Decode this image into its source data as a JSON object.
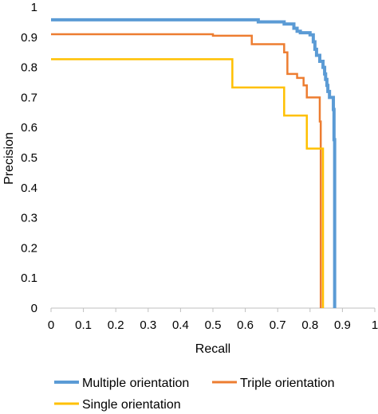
{
  "chart_data": {
    "type": "line",
    "step": true,
    "title": "",
    "xlabel": "Recall",
    "ylabel": "Precision",
    "xlim": [
      0,
      1
    ],
    "ylim": [
      0,
      1
    ],
    "xticks": [
      "0",
      "0.1",
      "0.2",
      "0.3",
      "0.4",
      "0.5",
      "0.6",
      "0.7",
      "0.8",
      "0.9",
      "1"
    ],
    "yticks": [
      "0",
      "0.1",
      "0.2",
      "0.3",
      "0.4",
      "0.5",
      "0.6",
      "0.7",
      "0.8",
      "0.9",
      "1"
    ],
    "xtick_values": [
      0,
      0.1,
      0.2,
      0.3,
      0.4,
      0.5,
      0.6,
      0.7,
      0.8,
      0.9,
      1
    ],
    "ytick_values": [
      0,
      0.1,
      0.2,
      0.3,
      0.4,
      0.5,
      0.6,
      0.7,
      0.8,
      0.9,
      1
    ],
    "grid": false,
    "legend_position": "bottom",
    "series": [
      {
        "name": "Multiple orientation",
        "color": "#5B9BD5",
        "points": [
          [
            0.0,
            0.958
          ],
          [
            0.64,
            0.958
          ],
          [
            0.64,
            0.951
          ],
          [
            0.72,
            0.951
          ],
          [
            0.72,
            0.944
          ],
          [
            0.75,
            0.944
          ],
          [
            0.75,
            0.93
          ],
          [
            0.76,
            0.93
          ],
          [
            0.76,
            0.92
          ],
          [
            0.77,
            0.92
          ],
          [
            0.77,
            0.915
          ],
          [
            0.8,
            0.915
          ],
          [
            0.8,
            0.908
          ],
          [
            0.81,
            0.908
          ],
          [
            0.81,
            0.885
          ],
          [
            0.815,
            0.885
          ],
          [
            0.815,
            0.86
          ],
          [
            0.82,
            0.86
          ],
          [
            0.82,
            0.84
          ],
          [
            0.83,
            0.84
          ],
          [
            0.83,
            0.82
          ],
          [
            0.84,
            0.82
          ],
          [
            0.84,
            0.8
          ],
          [
            0.845,
            0.8
          ],
          [
            0.845,
            0.778
          ],
          [
            0.848,
            0.778
          ],
          [
            0.848,
            0.76
          ],
          [
            0.852,
            0.76
          ],
          [
            0.852,
            0.74
          ],
          [
            0.855,
            0.74
          ],
          [
            0.855,
            0.72
          ],
          [
            0.86,
            0.72
          ],
          [
            0.86,
            0.7
          ],
          [
            0.872,
            0.7
          ],
          [
            0.872,
            0.66
          ],
          [
            0.874,
            0.66
          ],
          [
            0.874,
            0.56
          ],
          [
            0.876,
            0.56
          ],
          [
            0.876,
            0.0
          ]
        ]
      },
      {
        "name": "Triple orientation",
        "color": "#ED7D31",
        "points": [
          [
            0.0,
            0.91
          ],
          [
            0.5,
            0.91
          ],
          [
            0.5,
            0.905
          ],
          [
            0.62,
            0.905
          ],
          [
            0.62,
            0.877
          ],
          [
            0.72,
            0.877
          ],
          [
            0.72,
            0.85
          ],
          [
            0.73,
            0.85
          ],
          [
            0.73,
            0.778
          ],
          [
            0.76,
            0.778
          ],
          [
            0.76,
            0.765
          ],
          [
            0.78,
            0.765
          ],
          [
            0.78,
            0.74
          ],
          [
            0.79,
            0.74
          ],
          [
            0.79,
            0.7
          ],
          [
            0.83,
            0.7
          ],
          [
            0.83,
            0.62
          ],
          [
            0.833,
            0.62
          ],
          [
            0.833,
            0.0
          ]
        ]
      },
      {
        "name": "Single orientation",
        "color": "#FFC000",
        "points": [
          [
            0.0,
            0.827
          ],
          [
            0.56,
            0.827
          ],
          [
            0.56,
            0.733
          ],
          [
            0.72,
            0.733
          ],
          [
            0.72,
            0.64
          ],
          [
            0.79,
            0.64
          ],
          [
            0.79,
            0.53
          ],
          [
            0.84,
            0.53
          ],
          [
            0.84,
            0.0
          ]
        ]
      }
    ]
  }
}
